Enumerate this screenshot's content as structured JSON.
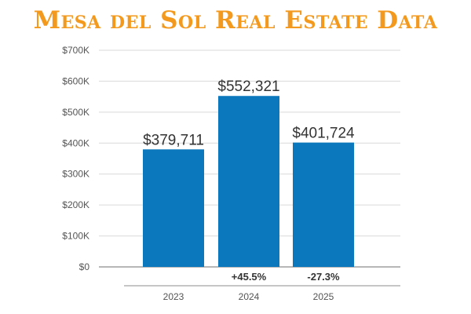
{
  "chart_data": {
    "type": "bar",
    "title": "Mesa del Sol Real Estate  Data",
    "categories": [
      "2023",
      "2024",
      "2025"
    ],
    "values": [
      379711,
      552321,
      401724
    ],
    "value_labels": [
      "$379,711",
      "$552,321",
      "$401,724"
    ],
    "change_labels": [
      "",
      "+45.5%",
      "-27.3%"
    ],
    "ylim": [
      0,
      700000
    ],
    "yticks": [
      0,
      100000,
      200000,
      300000,
      400000,
      500000,
      600000,
      700000
    ],
    "ytick_labels": [
      "$0",
      "$100K",
      "$200K",
      "$300K",
      "$400K",
      "$500K",
      "$600K",
      "$700K"
    ],
    "xlabel": "",
    "ylabel": "",
    "grid": true,
    "colors": {
      "bar": "#0b78bd",
      "title": "#f39a1e",
      "grid": "#d9d9d9",
      "axis": "#8c8c8c"
    }
  }
}
